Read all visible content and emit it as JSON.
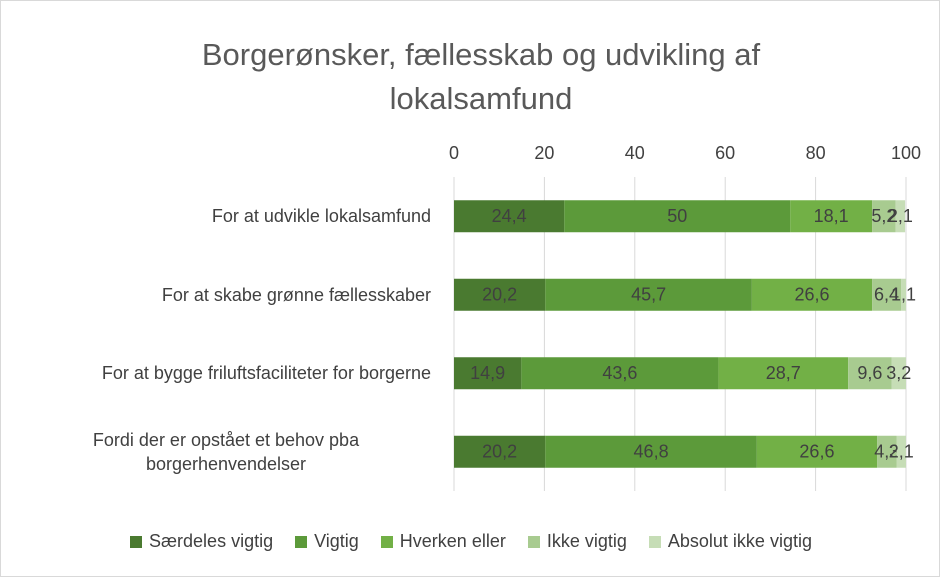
{
  "chart_data": {
    "type": "stacked_bar_horizontal",
    "title": "Borgerønsker, fællesskab og udvikling af lokalsamfund",
    "categories": [
      "For at udvikle lokalsamfund",
      "For at skabe grønne fællesskaber",
      "For at bygge friluftsfaciliteter for borgerne",
      "Fordi der er opstået et behov pba borgerhenvendelser"
    ],
    "series": [
      {
        "name": "Særdeles vigtig",
        "color": "#4a7a30",
        "values": [
          24.4,
          20.2,
          14.9,
          20.2
        ],
        "value_labels": [
          "24,4",
          "20,2",
          "14,9",
          "20,2"
        ]
      },
      {
        "name": "Vigtig",
        "color": "#5c9a3a",
        "values": [
          50,
          45.7,
          43.6,
          46.8
        ],
        "value_labels": [
          "50",
          "45,7",
          "43,6",
          "46,8"
        ]
      },
      {
        "name": "Hverken eller",
        "color": "#72b046",
        "values": [
          18.1,
          26.6,
          28.7,
          26.6
        ],
        "value_labels": [
          "18,1",
          "26,6",
          "28,7",
          "26,6"
        ]
      },
      {
        "name": "Ikke vigtig",
        "color": "#a8cb90",
        "values": [
          5.2,
          6.4,
          9.6,
          4.3
        ],
        "value_labels": [
          "5,2",
          "6,4",
          "9,6",
          "4,3"
        ]
      },
      {
        "name": "Absolut ikke vigtig",
        "color": "#c6ddb6",
        "values": [
          2.1,
          1.1,
          3.2,
          2.1
        ],
        "value_labels": [
          "2,1",
          "1,1",
          "3,2",
          "2,1"
        ]
      }
    ],
    "xlim": [
      0,
      100
    ],
    "xticks": [
      0,
      20,
      40,
      60,
      80,
      100
    ],
    "grid": true,
    "legend": "bottom"
  }
}
